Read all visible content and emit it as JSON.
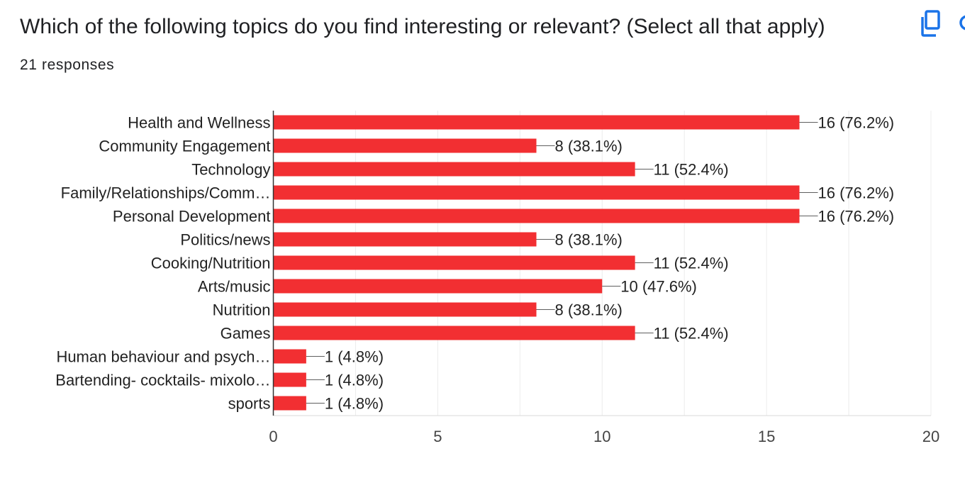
{
  "question": {
    "title": "Which of the following topics do you find interesting or relevant? (Select all that apply)",
    "responses": "21 responses"
  },
  "toolbar": {
    "copy_icon": "copy-icon",
    "edge_icon": "partial-icon"
  },
  "colors": {
    "bar": "#f22f32",
    "grid": "#ececec",
    "axis": "#333333",
    "text": "#222222",
    "icon": "#1a73e8"
  },
  "chart_data": {
    "type": "bar",
    "orientation": "horizontal",
    "categories": [
      "Health and Wellness",
      "Community Engagement",
      "Technology",
      "Family/Relationships/Comm…",
      "Personal Development",
      "Politics/news",
      "Cooking/Nutrition",
      "Arts/music",
      "Nutrition",
      "Games",
      "Human behaviour and psych…",
      "Bartending- cocktails- mixolo…",
      "sports"
    ],
    "values": [
      16,
      8,
      11,
      16,
      16,
      8,
      11,
      10,
      8,
      11,
      1,
      1,
      1
    ],
    "data_labels": [
      "16 (76.2%)",
      "8 (38.1%)",
      "11 (52.4%)",
      "16 (76.2%)",
      "16 (76.2%)",
      "8 (38.1%)",
      "11 (52.4%)",
      "10 (47.6%)",
      "8 (38.1%)",
      "11 (52.4%)",
      "1 (4.8%)",
      "1 (4.8%)",
      "1 (4.8%)"
    ],
    "xlim": [
      0,
      20
    ],
    "xticks": [
      0,
      5,
      10,
      15,
      20
    ],
    "xtick_labels": [
      "0",
      "5",
      "10",
      "15",
      "20"
    ],
    "minor_grid_step": 2.5,
    "grid": true,
    "title": "",
    "xlabel": "",
    "ylabel": ""
  }
}
